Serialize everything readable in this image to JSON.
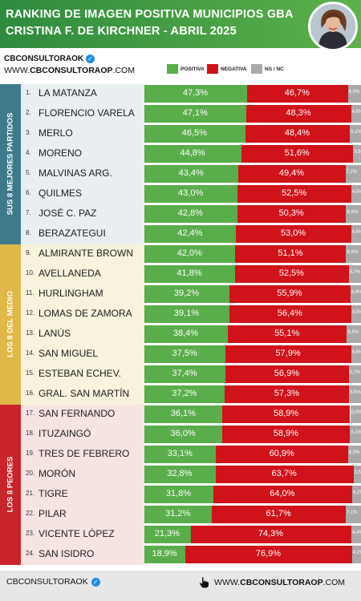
{
  "header": {
    "title_line1": "RANKING DE IMAGEN POSITIVA MUNICIPIOS GBA",
    "title_line2": "CRISTINA F. DE KIRCHNER - ABRIL 2025"
  },
  "brand": {
    "handle": "CBCONSULTORAOK",
    "website_prefix": "WWW.",
    "website_main": "CBCONSULTORAOP",
    "website_suffix": ".COM"
  },
  "legend": [
    {
      "label": "POSITIVA",
      "color": "#5aad4b"
    },
    {
      "label": "NEGATIVA",
      "color": "#d0121b"
    },
    {
      "label": "NS / NC",
      "color": "#a9a9a9"
    }
  ],
  "groups": [
    {
      "label": "SUS 8 MEJORES PARTIDOS",
      "color": "#3f7a8c",
      "bg": "#e9eff1"
    },
    {
      "label": "LOS 8 DEL MEDIO",
      "color": "#e0b84a",
      "bg": "#f8f3dc"
    },
    {
      "label": "LOS 8 PEORES",
      "color": "#c9232b",
      "bg": "#f6e4e3"
    }
  ],
  "chart_data": {
    "type": "bar",
    "title": "RANKING DE IMAGEN POSITIVA MUNICIPIOS GBA",
    "subtitle": "CRISTINA F. DE KIRCHNER - ABRIL 2025",
    "stacked": true,
    "orientation": "horizontal",
    "series_names": [
      "POSITIVA",
      "NEGATIVA",
      "NS / NC"
    ],
    "rows": [
      {
        "rank": "1.",
        "name": "LA MATANZA",
        "pos": 47.3,
        "neg": 46.7,
        "ns": 6.0,
        "pos_label": "47,3%",
        "neg_label": "46,7%",
        "ns_label": "6,0%"
      },
      {
        "rank": "2.",
        "name": "FLORENCIO VARELA",
        "pos": 47.1,
        "neg": 48.3,
        "ns": 4.6,
        "pos_label": "47,1%",
        "neg_label": "48,3%",
        "ns_label": "4,6%"
      },
      {
        "rank": "3.",
        "name": "MERLO",
        "pos": 46.5,
        "neg": 48.4,
        "ns": 5.1,
        "pos_label": "46,5%",
        "neg_label": "48,4%",
        "ns_label": "5,1%"
      },
      {
        "rank": "4.",
        "name": "MORENO",
        "pos": 44.8,
        "neg": 51.6,
        "ns": 3.6,
        "pos_label": "44,8%",
        "neg_label": "51,6%",
        "ns_label": "3,6%"
      },
      {
        "rank": "5.",
        "name": "MALVINAS ARG.",
        "pos": 43.4,
        "neg": 49.4,
        "ns": 7.2,
        "pos_label": "43,4%",
        "neg_label": "49,4%",
        "ns_label": "7,2%"
      },
      {
        "rank": "6.",
        "name": "QUILMES",
        "pos": 43.0,
        "neg": 52.5,
        "ns": 4.5,
        "pos_label": "43,0%",
        "neg_label": "52,5%",
        "ns_label": "4,5%"
      },
      {
        "rank": "7.",
        "name": "JOSÉ C. PAZ",
        "pos": 42.8,
        "neg": 50.3,
        "ns": 6.9,
        "pos_label": "42,8%",
        "neg_label": "50,3%",
        "ns_label": "6,9%"
      },
      {
        "rank": "8.",
        "name": "BERAZATEGUI",
        "pos": 42.4,
        "neg": 53.0,
        "ns": 4.6,
        "pos_label": "42,4%",
        "neg_label": "53,0%",
        "ns_label": "4,6%"
      },
      {
        "rank": "9.",
        "name": "ALMIRANTE BROWN",
        "pos": 42.0,
        "neg": 51.1,
        "ns": 6.9,
        "pos_label": "42,0%",
        "neg_label": "51,1%",
        "ns_label": "6,9%"
      },
      {
        "rank": "10.",
        "name": "AVELLANEDA",
        "pos": 41.8,
        "neg": 52.5,
        "ns": 5.7,
        "pos_label": "41,8%",
        "neg_label": "52,5%",
        "ns_label": "5,7%"
      },
      {
        "rank": "11.",
        "name": "HURLINGHAM",
        "pos": 39.2,
        "neg": 55.9,
        "ns": 4.9,
        "pos_label": "39,2%",
        "neg_label": "55,9%",
        "ns_label": "4,9%"
      },
      {
        "rank": "12.",
        "name": "LOMAS DE ZAMORA",
        "pos": 39.1,
        "neg": 56.4,
        "ns": 4.5,
        "pos_label": "39,1%",
        "neg_label": "56,4%",
        "ns_label": "4,5%"
      },
      {
        "rank": "13.",
        "name": "LANÚS",
        "pos": 38.4,
        "neg": 55.1,
        "ns": 6.5,
        "pos_label": "38,4%",
        "neg_label": "55,1%",
        "ns_label": "6,5%"
      },
      {
        "rank": "14.",
        "name": "SAN MIGUEL",
        "pos": 37.5,
        "neg": 57.9,
        "ns": 4.6,
        "pos_label": "37,5%",
        "neg_label": "57,9%",
        "ns_label": "4,6%"
      },
      {
        "rank": "15.",
        "name": "ESTEBAN ECHEV.",
        "pos": 37.4,
        "neg": 56.9,
        "ns": 5.7,
        "pos_label": "37,4%",
        "neg_label": "56,9%",
        "ns_label": "5,7%"
      },
      {
        "rank": "16.",
        "name": "GRAL. SAN MARTÍN",
        "pos": 37.2,
        "neg": 57.3,
        "ns": 5.5,
        "pos_label": "37,2%",
        "neg_label": "57,3%",
        "ns_label": "5,5%"
      },
      {
        "rank": "17.",
        "name": "SAN FERNANDO",
        "pos": 36.1,
        "neg": 58.9,
        "ns": 5.0,
        "pos_label": "36,1%",
        "neg_label": "58,9%",
        "ns_label": "5,0%"
      },
      {
        "rank": "18.",
        "name": "ITUZAINGÓ",
        "pos": 36.0,
        "neg": 58.9,
        "ns": 5.1,
        "pos_label": "36,0%",
        "neg_label": "58,9%",
        "ns_label": "5,1%"
      },
      {
        "rank": "19.",
        "name": "TRES DE FEBRERO",
        "pos": 33.1,
        "neg": 60.9,
        "ns": 6.0,
        "pos_label": "33,1%",
        "neg_label": "60,9%",
        "ns_label": "6,0%"
      },
      {
        "rank": "20.",
        "name": "MORÓN",
        "pos": 32.8,
        "neg": 63.7,
        "ns": 3.5,
        "pos_label": "32,8%",
        "neg_label": "63,7%",
        "ns_label": "3,5%"
      },
      {
        "rank": "21.",
        "name": "TIGRE",
        "pos": 31.8,
        "neg": 64.0,
        "ns": 4.2,
        "pos_label": "31,8%",
        "neg_label": "64,0%",
        "ns_label": "4,2%"
      },
      {
        "rank": "22.",
        "name": "PILAR",
        "pos": 31.2,
        "neg": 61.7,
        "ns": 7.1,
        "pos_label": "31,2%",
        "neg_label": "61,7%",
        "ns_label": "7,1%"
      },
      {
        "rank": "23.",
        "name": "VICENTE LÓPEZ",
        "pos": 21.3,
        "neg": 74.3,
        "ns": 4.4,
        "pos_label": "21,3%",
        "neg_label": "74,3%",
        "ns_label": "4,4%"
      },
      {
        "rank": "24.",
        "name": "SAN ISIDRO",
        "pos": 18.9,
        "neg": 76.9,
        "ns": 4.2,
        "pos_label": "18,9%",
        "neg_label": "76,9%",
        "ns_label": "4,2%"
      }
    ]
  },
  "footer": {
    "handle": "CBCONSULTORAOK",
    "website_prefix": "WWW.",
    "website_main": "CBCONSULTORAOP",
    "website_suffix": ".COM"
  }
}
